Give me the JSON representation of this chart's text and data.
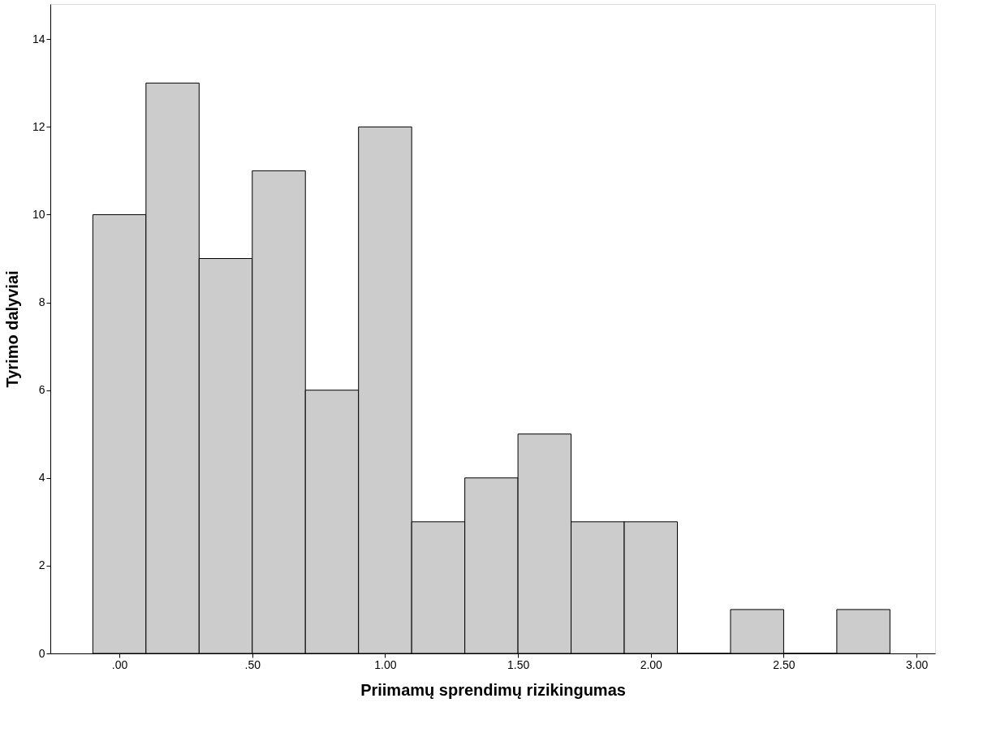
{
  "chart_data": {
    "type": "histogram",
    "xlabel": "Priimamų sprendimų rizikingumas",
    "ylabel": "Tyrimo dalyviai",
    "bins": [
      -0.1,
      0.1,
      0.3,
      0.5,
      0.7,
      0.9,
      1.1,
      1.3,
      1.5,
      1.7,
      1.9,
      2.1,
      2.3,
      2.5,
      2.7,
      2.9
    ],
    "values": [
      10,
      13,
      9,
      11,
      6,
      12,
      3,
      4,
      5,
      3,
      3,
      0,
      1,
      0,
      1
    ],
    "color": "#cccccc",
    "xlim": [
      -0.26,
      3.07
    ],
    "xticks": [
      {
        "value": 0,
        "label": ".00"
      },
      {
        "value": 0.5,
        "label": ".50"
      },
      {
        "value": 1,
        "label": "1.00"
      },
      {
        "value": 1.5,
        "label": "1.50"
      },
      {
        "value": 2,
        "label": "2.00"
      },
      {
        "value": 2.5,
        "label": "2.50"
      },
      {
        "value": 3,
        "label": "3.00"
      }
    ],
    "ylim": [
      0,
      14.8
    ],
    "yticks": [
      0,
      2,
      4,
      6,
      8,
      10,
      12,
      14
    ],
    "grid": false
  }
}
